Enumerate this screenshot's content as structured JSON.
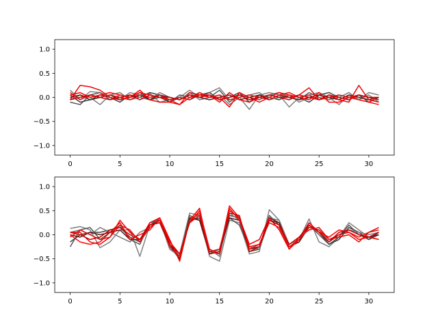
{
  "chart_data": [
    {
      "type": "line",
      "xlabel": "",
      "ylabel": "",
      "xlim": [
        -1.55,
        32.55
      ],
      "ylim": [
        -1.2,
        1.2
      ],
      "xticks": [
        0,
        5,
        10,
        15,
        20,
        25,
        30
      ],
      "yticks": [
        -1.0,
        -0.5,
        0.0,
        0.5,
        1.0
      ],
      "xtick_labels": [
        "0",
        "5",
        "10",
        "15",
        "20",
        "25",
        "30"
      ],
      "ytick_labels": [
        "−1.0",
        "−0.5",
        "0.0",
        "0.5",
        "1.0"
      ],
      "grid": false,
      "series": [
        {
          "color": "#808080",
          "values": [
            0.15,
            -0.05,
            0.12,
            0.1,
            0.0,
            -0.05,
            0.1,
            0.05,
            0.08,
            -0.1,
            -0.05,
            0.0,
            0.15,
            0.0,
            0.1,
            0.2,
            -0.05,
            0.0,
            -0.25,
            0.05,
            0.1,
            0.05,
            -0.2,
            0.0,
            0.05,
            0.1,
            0.0,
            -0.15,
            0.05,
            -0.05,
            0.1,
            0.05
          ]
        },
        {
          "color": "#555555",
          "values": [
            -0.1,
            -0.15,
            0.05,
            0.1,
            -0.05,
            0.05,
            0.0,
            0.1,
            -0.05,
            0.0,
            -0.1,
            0.05,
            0.0,
            0.1,
            0.0,
            0.15,
            -0.1,
            0.05,
            0.0,
            -0.05,
            0.05,
            0.1,
            0.0,
            -0.05,
            0.1,
            0.0,
            -0.05,
            0.05,
            0.0,
            0.05,
            0.0,
            -0.05
          ]
        },
        {
          "color": "#404040",
          "values": [
            0.05,
            -0.1,
            -0.05,
            0.05,
            0.0,
            -0.1,
            0.05,
            0.0,
            0.1,
            0.05,
            -0.1,
            0.0,
            -0.05,
            0.05,
            0.1,
            -0.05,
            0.0,
            0.1,
            -0.1,
            0.05,
            0.0,
            -0.05,
            0.05,
            0.0,
            -0.1,
            0.05,
            0.1,
            0.0,
            -0.05,
            0.05,
            -0.1,
            0.0
          ]
        },
        {
          "color": "#7a7a7a",
          "values": [
            -0.05,
            0.05,
            0.0,
            -0.15,
            0.05,
            0.1,
            -0.05,
            0.0,
            -0.05,
            0.1,
            0.0,
            -0.05,
            0.1,
            -0.05,
            0.0,
            0.05,
            -0.15,
            0.0,
            0.05,
            0.1,
            -0.05,
            0.0,
            0.05,
            -0.1,
            0.0,
            0.05,
            -0.05,
            0.0,
            0.1,
            -0.05,
            0.05,
            -0.1
          ]
        },
        {
          "color": "#5a1a1a",
          "values": [
            0.0,
            0.05,
            -0.05,
            0.0,
            0.05,
            -0.05,
            0.0,
            0.05,
            -0.05,
            0.05,
            0.0,
            -0.05,
            0.05,
            0.0,
            -0.05,
            0.0,
            0.05,
            -0.05,
            0.0,
            0.05,
            -0.05,
            0.05,
            0.0,
            -0.05,
            0.0,
            0.05,
            0.0,
            -0.05,
            0.05,
            0.0,
            -0.05,
            0.0
          ]
        },
        {
          "color": "#ee0000",
          "values": [
            -0.05,
            0.25,
            0.22,
            0.15,
            0.0,
            -0.05,
            0.0,
            0.15,
            -0.05,
            -0.1,
            -0.1,
            -0.15,
            0.1,
            0.05,
            0.05,
            -0.1,
            0.1,
            -0.05,
            -0.1,
            0.0,
            0.05,
            0.0,
            0.0,
            0.05,
            0.2,
            -0.05,
            0.05,
            -0.05,
            -0.1,
            0.25,
            -0.05,
            -0.1
          ]
        },
        {
          "color": "#ff0000",
          "values": [
            0.05,
            0.1,
            0.0,
            0.05,
            0.1,
            0.05,
            0.0,
            0.1,
            0.05,
            0.0,
            -0.05,
            -0.15,
            0.0,
            0.05,
            0.0,
            0.0,
            -0.2,
            0.1,
            0.0,
            -0.1,
            0.0,
            0.1,
            0.05,
            0.0,
            -0.05,
            0.1,
            -0.1,
            -0.1,
            0.0,
            -0.05,
            -0.1,
            -0.15
          ]
        },
        {
          "color": "#dd1111",
          "values": [
            0.1,
            -0.05,
            0.05,
            0.0,
            0.05,
            0.0,
            -0.05,
            0.05,
            0.0,
            0.05,
            -0.05,
            0.0,
            -0.05,
            0.1,
            0.0,
            0.05,
            -0.05,
            0.0,
            0.05,
            0.0,
            -0.05,
            0.05,
            0.1,
            0.0,
            0.05,
            -0.05,
            0.0,
            0.05,
            0.0,
            0.05,
            0.0,
            -0.05
          ]
        },
        {
          "color": "#cc0000",
          "values": [
            -0.05,
            0.0,
            0.05,
            0.0,
            -0.05,
            0.0,
            0.05,
            -0.05,
            0.05,
            0.0,
            0.0,
            -0.05,
            0.05,
            0.0,
            0.05,
            -0.05,
            0.0,
            0.05,
            -0.05,
            0.0,
            0.05,
            0.0,
            -0.05,
            0.05,
            0.0,
            -0.05,
            0.05,
            0.0,
            -0.05,
            0.05,
            0.0,
            0.0
          ]
        }
      ]
    },
    {
      "type": "line",
      "xlabel": "",
      "ylabel": "",
      "xlim": [
        -1.55,
        32.55
      ],
      "ylim": [
        -1.2,
        1.2
      ],
      "xticks": [
        0,
        5,
        10,
        15,
        20,
        25,
        30
      ],
      "yticks": [
        -1.0,
        -0.5,
        0.0,
        0.5,
        1.0
      ],
      "xtick_labels": [
        "0",
        "5",
        "10",
        "15",
        "20",
        "25",
        "30"
      ],
      "ytick_labels": [
        "−1.0",
        "−0.5",
        "0.0",
        "0.5",
        "1.0"
      ],
      "grid": false,
      "series": [
        {
          "color": "#808080",
          "values": [
            0.13,
            0.17,
            0.1,
            -0.27,
            -0.15,
            0.1,
            0.1,
            -0.45,
            0.2,
            0.35,
            -0.15,
            -0.4,
            0.45,
            0.4,
            -0.45,
            -0.55,
            0.3,
            0.25,
            -0.4,
            -0.35,
            0.52,
            0.3,
            -0.2,
            -0.1,
            0.33,
            -0.15,
            -0.25,
            -0.05,
            0.25,
            0.1,
            -0.05,
            -0.1
          ]
        },
        {
          "color": "#555555",
          "values": [
            -0.25,
            0.1,
            0.15,
            -0.1,
            0.05,
            0.2,
            -0.1,
            -0.2,
            0.25,
            0.3,
            -0.2,
            -0.45,
            0.4,
            0.3,
            -0.4,
            -0.3,
            0.35,
            0.2,
            -0.3,
            -0.25,
            0.4,
            0.2,
            -0.25,
            -0.15,
            0.2,
            0.0,
            -0.2,
            -0.05,
            0.2,
            0.0,
            -0.1,
            0.0
          ]
        },
        {
          "color": "#404040",
          "values": [
            -0.15,
            0.0,
            0.05,
            0.05,
            0.1,
            0.15,
            -0.05,
            -0.15,
            0.2,
            0.25,
            -0.25,
            -0.5,
            0.3,
            0.35,
            -0.35,
            -0.4,
            0.4,
            0.35,
            -0.35,
            -0.3,
            0.3,
            0.25,
            -0.3,
            -0.1,
            0.25,
            0.05,
            -0.2,
            -0.1,
            0.15,
            0.05,
            -0.1,
            0.05
          ]
        },
        {
          "color": "#7a7a7a",
          "values": [
            0.05,
            0.1,
            0.0,
            0.15,
            0.05,
            -0.05,
            -0.15,
            0.05,
            0.15,
            0.3,
            -0.3,
            -0.45,
            0.35,
            0.4,
            -0.3,
            -0.45,
            0.45,
            0.3,
            -0.25,
            -0.3,
            0.35,
            0.3,
            -0.25,
            -0.15,
            0.15,
            0.1,
            -0.15,
            0.05,
            0.1,
            0.05,
            0.0,
            0.05
          ]
        },
        {
          "color": "#5a1a1a",
          "values": [
            0.0,
            -0.05,
            0.05,
            0.0,
            0.05,
            0.1,
            -0.1,
            -0.1,
            0.2,
            0.3,
            -0.2,
            -0.5,
            0.35,
            0.3,
            -0.4,
            -0.35,
            0.35,
            0.3,
            -0.3,
            -0.25,
            0.35,
            0.25,
            -0.25,
            -0.15,
            0.2,
            0.05,
            -0.15,
            0.0,
            0.1,
            0.0,
            -0.05,
            0.0
          ]
        },
        {
          "color": "#ee0000",
          "values": [
            0.05,
            0.05,
            -0.15,
            -0.2,
            -0.05,
            0.3,
            0.05,
            -0.1,
            0.25,
            0.35,
            -0.1,
            -0.55,
            0.3,
            0.55,
            -0.4,
            -0.35,
            0.6,
            0.35,
            -0.2,
            -0.1,
            0.35,
            0.1,
            -0.3,
            -0.05,
            0.1,
            0.15,
            -0.1,
            -0.05,
            0.0,
            -0.15,
            0.05,
            0.15
          ]
        },
        {
          "color": "#ff0000",
          "values": [
            0.0,
            -0.15,
            -0.2,
            -0.15,
            0.05,
            0.25,
            -0.1,
            0.0,
            0.1,
            0.35,
            -0.15,
            -0.4,
            0.25,
            0.5,
            -0.3,
            -0.4,
            0.55,
            0.3,
            -0.25,
            -0.2,
            0.3,
            0.2,
            -0.3,
            -0.1,
            0.25,
            0.05,
            -0.05,
            0.1,
            0.05,
            -0.1,
            -0.05,
            -0.1
          ]
        },
        {
          "color": "#dd1111",
          "values": [
            -0.05,
            0.1,
            0.0,
            -0.1,
            -0.05,
            0.2,
            0.1,
            -0.15,
            0.15,
            0.3,
            -0.25,
            -0.45,
            0.3,
            0.45,
            -0.35,
            -0.3,
            0.5,
            0.35,
            -0.3,
            -0.2,
            0.25,
            0.15,
            -0.25,
            -0.1,
            0.15,
            0.1,
            -0.1,
            0.0,
            0.05,
            -0.05,
            0.05,
            0.1
          ]
        },
        {
          "color": "#cc0000",
          "values": [
            0.05,
            0.0,
            -0.1,
            -0.05,
            0.1,
            0.15,
            0.0,
            -0.1,
            0.2,
            0.25,
            -0.2,
            -0.4,
            0.25,
            0.4,
            -0.4,
            -0.35,
            0.45,
            0.4,
            -0.35,
            -0.25,
            0.3,
            0.2,
            -0.2,
            -0.05,
            0.2,
            0.05,
            -0.15,
            0.05,
            0.1,
            0.0,
            -0.05,
            0.05
          ]
        }
      ]
    }
  ]
}
